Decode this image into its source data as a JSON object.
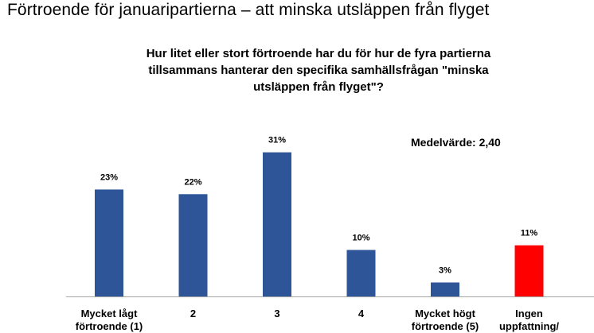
{
  "page": {
    "title": "Förtroende för januaripartierna – att minska utsläppen från flyget"
  },
  "chart_data": {
    "type": "bar",
    "title": "Hur litet eller stort förtroende har du för hur de fyra partierna tillsammans hanterar den specifika samhällsfrågan \"minska utsläppen från flyget\"?",
    "annotation": "Medelvärde: 2,40",
    "categories": [
      [
        "Mycket lågt",
        "förtroende (1)"
      ],
      [
        "2"
      ],
      [
        "3"
      ],
      [
        "4"
      ],
      [
        "Mycket högt",
        "förtroende (5)"
      ],
      [
        "Ingen",
        "uppfattning/"
      ]
    ],
    "values": [
      23,
      22,
      31,
      10,
      3,
      11
    ],
    "value_labels": [
      "23%",
      "22%",
      "31%",
      "10%",
      "3%",
      "11%"
    ],
    "unit": "%",
    "ylim": [
      0,
      35
    ],
    "grid": false,
    "colors": [
      "#2E5597",
      "#2E5597",
      "#2E5597",
      "#2E5597",
      "#2E5597",
      "#FF0000"
    ],
    "axis_color": "#A6A6A6"
  }
}
